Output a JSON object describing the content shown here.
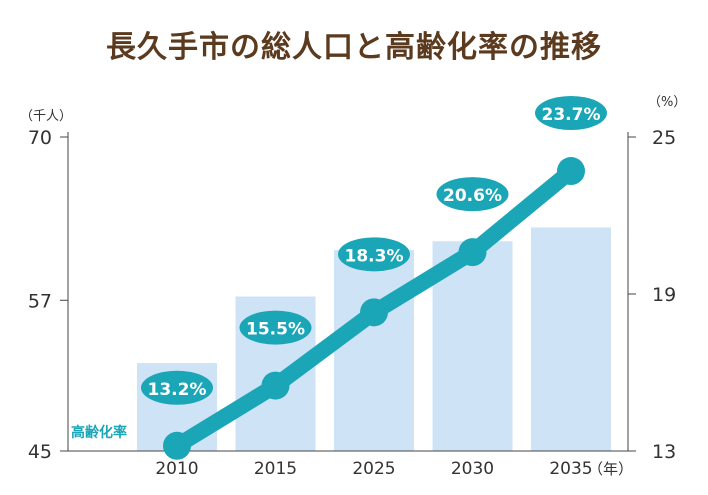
{
  "title": "長久手市の総人口と高齢化率の推移",
  "chart_data": {
    "type": "bar+line",
    "title": "長久手市の総人口と高齢化率の推移",
    "categories": [
      "2010",
      "2015",
      "2025",
      "2030",
      "2035"
    ],
    "x_unit": "（年）",
    "left_axis": {
      "unit": "（千人）",
      "ticks": [
        "70",
        "57",
        "45"
      ],
      "range": [
        45,
        70
      ]
    },
    "right_axis": {
      "unit": "（%）",
      "ticks": [
        "25",
        "19",
        "13"
      ],
      "range": [
        13,
        25
      ]
    },
    "series": [
      {
        "type": "bar",
        "axis": "left",
        "values": [
          52.0,
          57.3,
          61.0,
          61.7,
          62.8
        ]
      },
      {
        "name": "高齢化率",
        "type": "line",
        "axis": "right",
        "values": [
          13.2,
          15.5,
          18.3,
          20.6,
          23.7
        ],
        "labels": [
          "13.2%",
          "15.5%",
          "18.3%",
          "20.6%",
          "23.7%"
        ]
      }
    ],
    "grid": false,
    "colors": {
      "bar": "#cfe3f7",
      "line": "#1aa6b7",
      "label_bg": "#1aa6b7",
      "label_text": "#ffffff",
      "title": "#5b3a1e",
      "series_label": "#1aa6b7"
    }
  }
}
